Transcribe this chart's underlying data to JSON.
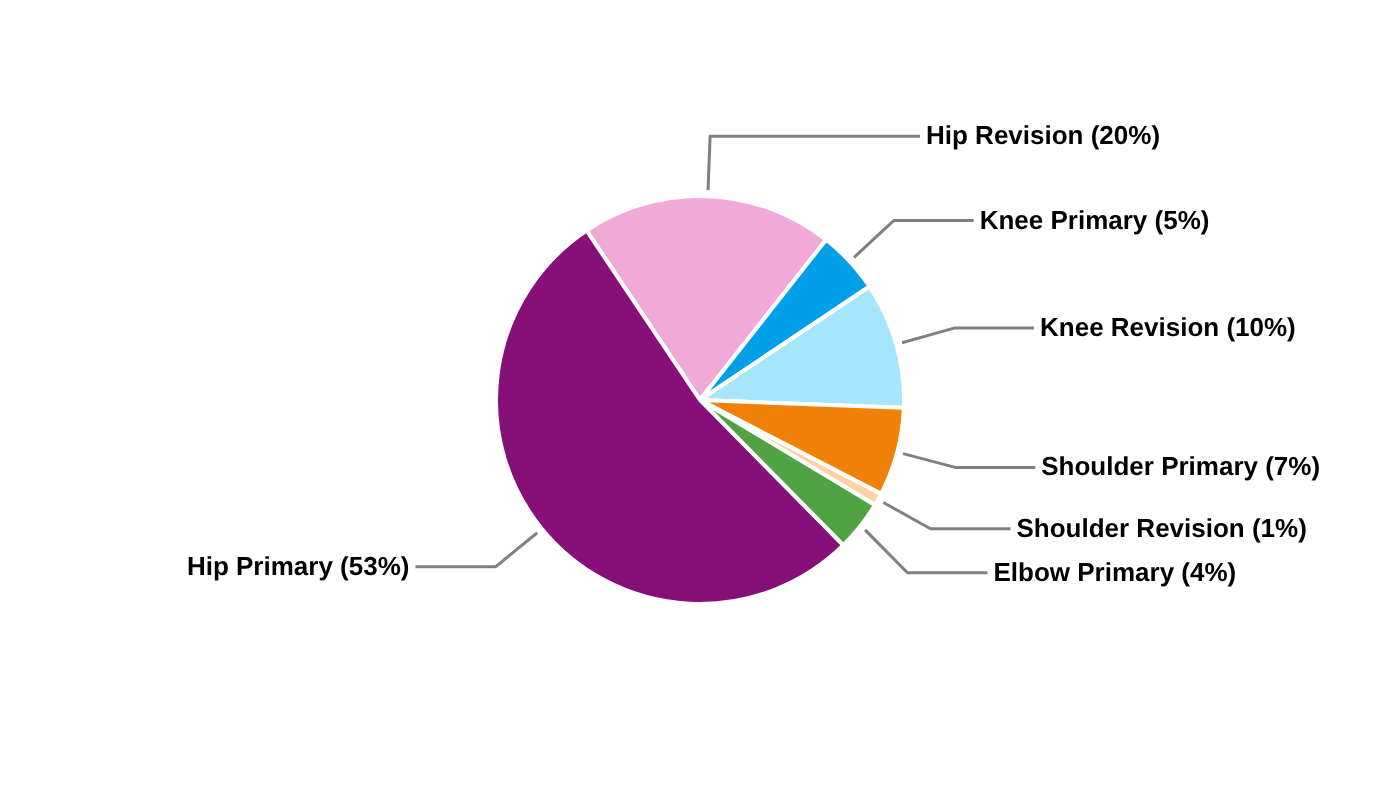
{
  "chart_data": {
    "type": "pie",
    "categories": [
      "Hip Revision",
      "Knee Primary",
      "Knee Revision",
      "Shoulder Primary",
      "Shoulder Revision",
      "Elbow Primary",
      "Hip Primary"
    ],
    "values": [
      20,
      5,
      10,
      7,
      1,
      4,
      53
    ],
    "colors": [
      "#f1aad8",
      "#00a0e9",
      "#a6e5fb",
      "#f08008",
      "#fdd0a8",
      "#51a244",
      "#861077"
    ],
    "value_labels": [
      "(20%)",
      "(5%)",
      "(10%)",
      "(7%)",
      "(1%)",
      "(4%)",
      "(53%)"
    ]
  }
}
